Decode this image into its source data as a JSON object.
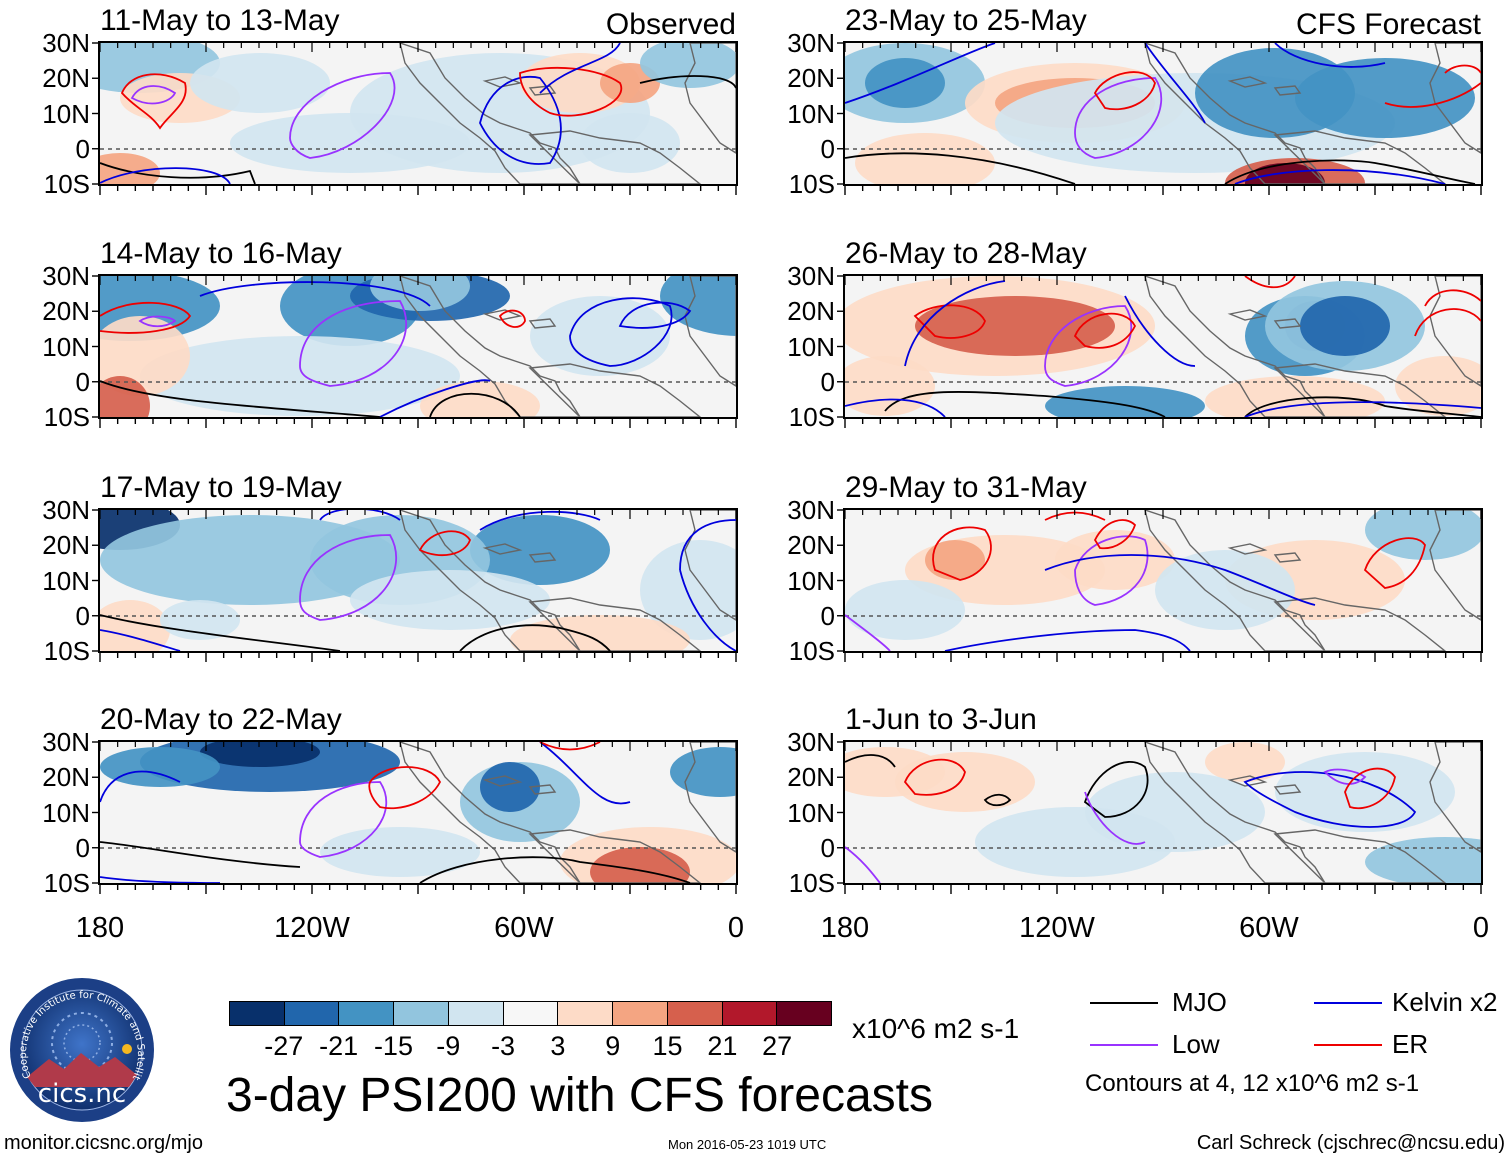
{
  "title": "3-day PSI200 with CFS forecasts",
  "panels": [
    {
      "id": "p1",
      "title": "11-May to 13-May",
      "label": "Observed"
    },
    {
      "id": "p2",
      "title": "14-May to 16-May",
      "label": ""
    },
    {
      "id": "p3",
      "title": "17-May to 19-May",
      "label": ""
    },
    {
      "id": "p4",
      "title": "20-May to 22-May",
      "label": ""
    },
    {
      "id": "p5",
      "title": "23-May to 25-May",
      "label": "CFS Forecast"
    },
    {
      "id": "p6",
      "title": "26-May to 28-May",
      "label": ""
    },
    {
      "id": "p7",
      "title": "29-May to 31-May",
      "label": ""
    },
    {
      "id": "p8",
      "title": "1-Jun to 3-Jun",
      "label": ""
    }
  ],
  "y_axis_labels": [
    "30N",
    "20N",
    "10N",
    "0",
    "10S"
  ],
  "x_axis_labels": [
    "180",
    "120W",
    "60W",
    "0"
  ],
  "colorbar": {
    "levels": [
      "-27",
      "-21",
      "-15",
      "-9",
      "-3",
      "3",
      "9",
      "15",
      "21",
      "27"
    ],
    "colors": [
      "#08306b",
      "#2166ac",
      "#4393c3",
      "#92c5de",
      "#d1e5f0",
      "#f7f7f7",
      "#fddbc7",
      "#f4a582",
      "#d6604d",
      "#b2182b",
      "#67001f"
    ],
    "units": "x10^6 m2 s-1"
  },
  "legend": {
    "items": [
      {
        "label": "MJO",
        "color": "#000000"
      },
      {
        "label": "Kelvin x2",
        "color": "#0000dd"
      },
      {
        "label": "Low",
        "color": "#9933ff"
      },
      {
        "label": "ER",
        "color": "#ee0000"
      }
    ],
    "note": "Contours at 4, 12 x10^6 m2 s-1"
  },
  "logo": {
    "text": "cics.nc",
    "ring_text": "Cooperative Institute for Climate and Satellites"
  },
  "footer": {
    "url": "monitor.cicsnc.org/mjo",
    "date": "Mon 2016-05-23 1019 UTC",
    "author": "Carl Schreck (cjschrec@ncsu.edu)"
  }
}
